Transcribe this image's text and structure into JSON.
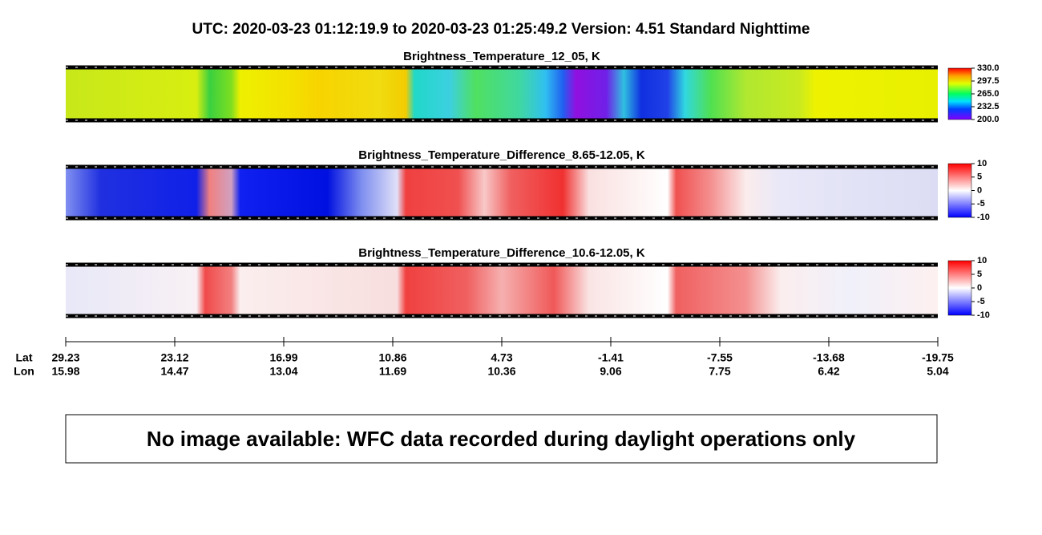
{
  "header": {
    "title": "UTC:  2020-03-23   01:12:19.9  to  2020-03-23   01:25:49.2    Version: 4.51  Standard Nighttime"
  },
  "panels": [
    {
      "title": "Brightness_Temperature_12_05, K",
      "colorbar": {
        "lim": [
          200,
          330
        ],
        "ticks": [
          {
            "value": 330,
            "label": "330.0"
          },
          {
            "value": 297.5,
            "label": "297.5"
          },
          {
            "value": 265,
            "label": "265.0"
          },
          {
            "value": 232.5,
            "label": "232.5"
          },
          {
            "value": 200,
            "label": "200.0"
          }
        ]
      }
    },
    {
      "title": "Brightness_Temperature_Difference_8.65-12.05, K",
      "colorbar": {
        "lim": [
          -10,
          10
        ],
        "ticks": [
          10,
          5,
          0,
          -5,
          -10
        ]
      }
    },
    {
      "title": "Brightness_Temperature_Difference_10.6-12.05, K",
      "colorbar": {
        "lim": [
          -10,
          10
        ],
        "ticks": [
          10,
          5,
          0,
          -5,
          -10
        ]
      }
    }
  ],
  "track": {
    "lat_label": "Lat",
    "lon_label": "Lon",
    "lat": [
      29.23,
      23.12,
      16.99,
      10.86,
      4.73,
      -1.41,
      -7.55,
      -13.68,
      -19.75
    ],
    "lon": [
      15.98,
      14.47,
      13.04,
      11.69,
      10.36,
      9.06,
      7.75,
      6.42,
      5.04
    ]
  },
  "message": "No image available: WFC data recorded during daylight operations only"
}
